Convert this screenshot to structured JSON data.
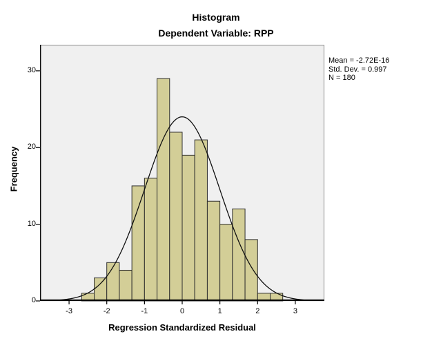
{
  "chart_data": {
    "type": "bar",
    "subtype": "histogram",
    "title": "Histogram",
    "subtitle": "Dependent Variable: RPP",
    "xlabel": "Regression Standardized Residual",
    "ylabel": "Frequency",
    "bins": {
      "start": -2.66667,
      "width": 0.33333
    },
    "values": [
      1,
      3,
      5,
      4,
      15,
      16,
      29,
      22,
      19,
      21,
      13,
      10,
      12,
      8,
      1,
      1
    ],
    "x_ticks": [
      -3,
      -2,
      -1,
      0,
      1,
      2,
      3
    ],
    "y_ticks": [
      0,
      10,
      20,
      30
    ],
    "xlim": [
      -3.77,
      3.77
    ],
    "ylim": [
      0,
      33.4
    ],
    "grid": false,
    "normal_curve": {
      "mean": 0,
      "std_dev": 0.997,
      "n": 180,
      "peak": 24
    },
    "legend": {
      "position": "top-right-outside",
      "mean": "Mean = -2.72E-16",
      "std_dev": "Std. Dev. = 0.997",
      "n": "N = 180"
    },
    "colors": {
      "bar_fill": "#d3ce97",
      "bar_border": "#2e2e2e",
      "plot_bg": "#f0f0f0",
      "plot_border": "#8a8a8a",
      "axis": "#000000",
      "curve": "#101010"
    }
  }
}
